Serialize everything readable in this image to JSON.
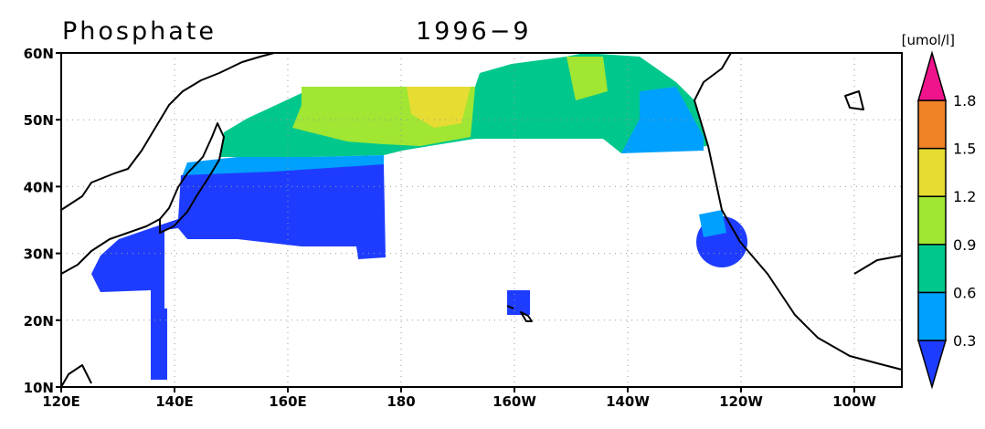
{
  "map": {
    "title": "Phosphate",
    "date": "1996−9",
    "units": "[umol/l]",
    "lon_ticks": [
      {
        "value": 120,
        "label": "120E"
      },
      {
        "value": 140,
        "label": "140E"
      },
      {
        "value": 160,
        "label": "160E"
      },
      {
        "value": 180,
        "label": "180"
      },
      {
        "value": 200,
        "label": "160W"
      },
      {
        "value": 220,
        "label": "140W"
      },
      {
        "value": 240,
        "label": "120W"
      },
      {
        "value": 260,
        "label": "100W"
      }
    ],
    "lat_ticks": [
      {
        "value": 10,
        "label": "10N"
      },
      {
        "value": 20,
        "label": "20N"
      },
      {
        "value": 30,
        "label": "30N"
      },
      {
        "value": 40,
        "label": "40N"
      },
      {
        "value": 50,
        "label": "50N"
      },
      {
        "value": 60,
        "label": "60N"
      }
    ],
    "colorbar": {
      "levels": [
        0.3,
        0.6,
        0.9,
        1.2,
        1.5,
        1.8
      ],
      "colors": [
        "#1e3cff",
        "#00a0ff",
        "#00c88c",
        "#a0e632",
        "#e6dc32",
        "#f08228",
        "#f0148c"
      ]
    }
  }
}
